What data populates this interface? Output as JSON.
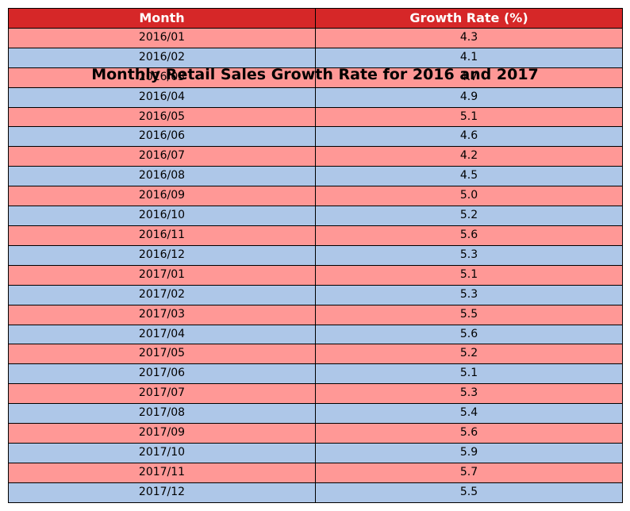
{
  "chart_data": {
    "type": "table",
    "title": "Monthly Retail Sales Growth Rate for 2016 and 2017",
    "columns": [
      "Month",
      "Growth Rate (%)"
    ],
    "rows": [
      [
        "2016/01",
        "4.3"
      ],
      [
        "2016/02",
        "4.1"
      ],
      [
        "2016/03",
        "4.7"
      ],
      [
        "2016/04",
        "4.9"
      ],
      [
        "2016/05",
        "5.1"
      ],
      [
        "2016/06",
        "4.6"
      ],
      [
        "2016/07",
        "4.2"
      ],
      [
        "2016/08",
        "4.5"
      ],
      [
        "2016/09",
        "5.0"
      ],
      [
        "2016/10",
        "5.2"
      ],
      [
        "2016/11",
        "5.6"
      ],
      [
        "2016/12",
        "5.3"
      ],
      [
        "2017/01",
        "5.1"
      ],
      [
        "2017/02",
        "5.3"
      ],
      [
        "2017/03",
        "5.5"
      ],
      [
        "2017/04",
        "5.6"
      ],
      [
        "2017/05",
        "5.2"
      ],
      [
        "2017/06",
        "5.1"
      ],
      [
        "2017/07",
        "5.3"
      ],
      [
        "2017/08",
        "5.4"
      ],
      [
        "2017/09",
        "5.6"
      ],
      [
        "2017/10",
        "5.9"
      ],
      [
        "2017/11",
        "5.7"
      ],
      [
        "2017/12",
        "5.5"
      ]
    ],
    "colors": {
      "header": "#d62728",
      "row_odd": "#ff9896",
      "row_even": "#aec7e8"
    }
  }
}
